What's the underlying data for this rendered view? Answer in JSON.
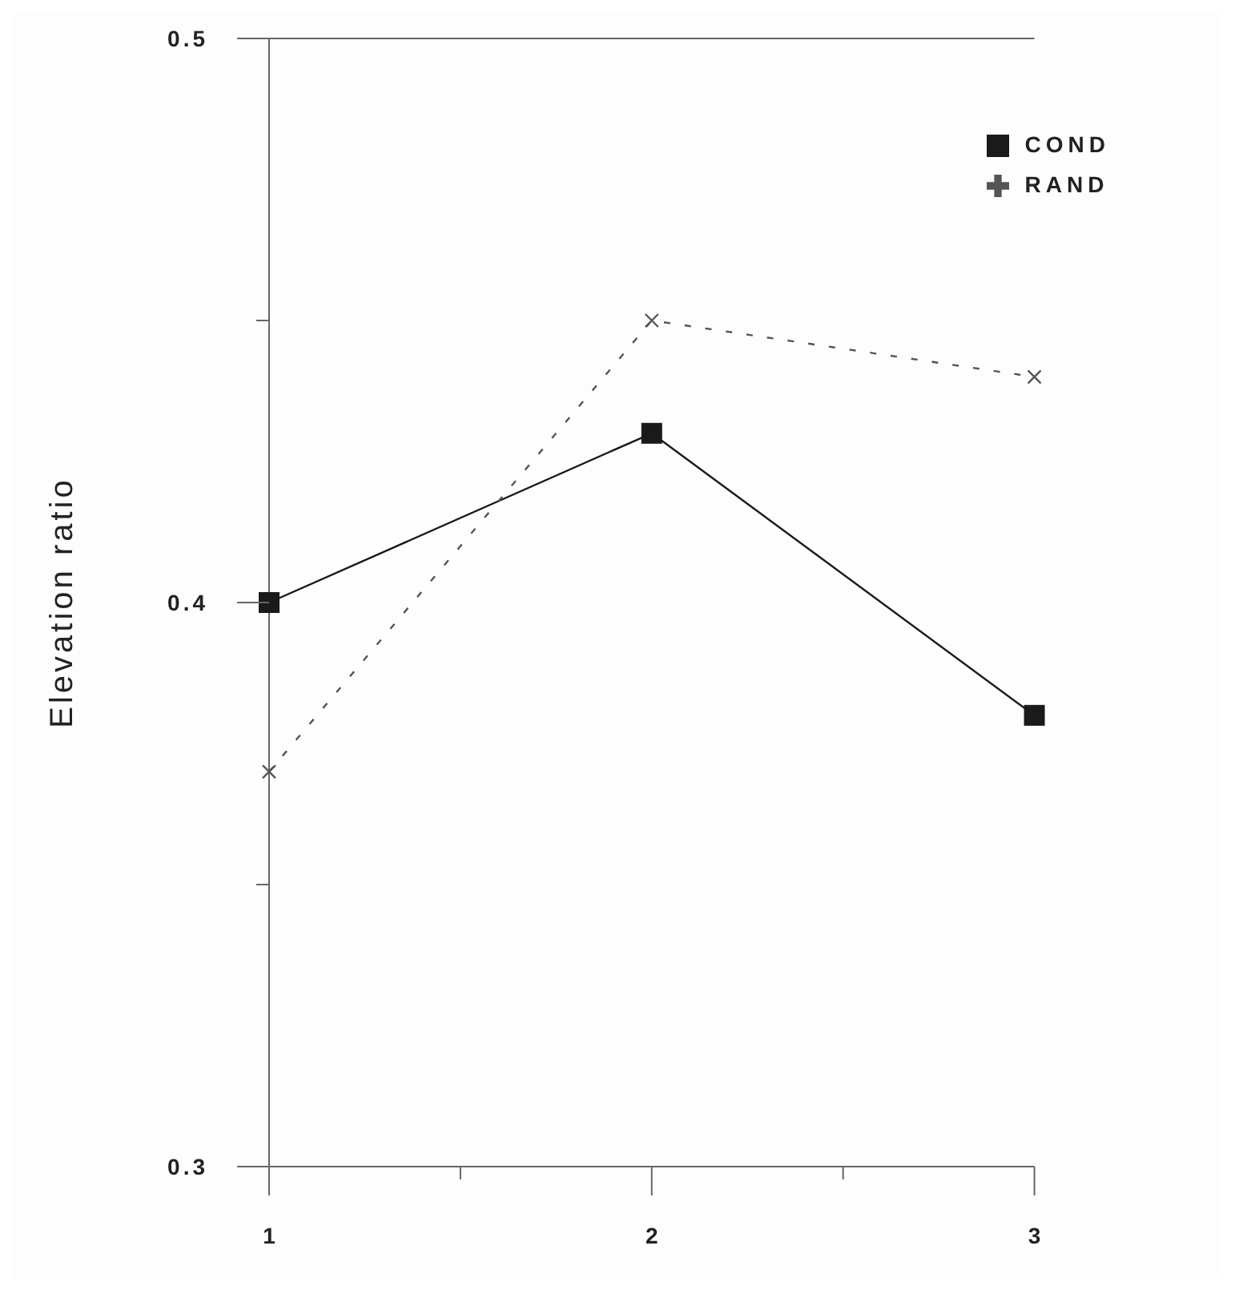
{
  "chart_data": {
    "type": "line",
    "ylabel": "Elevation ratio",
    "x": [
      1,
      2,
      3
    ],
    "xlim": [
      1,
      3
    ],
    "xticks": [
      1,
      {
        "value": 1.5,
        "label": null
      },
      2,
      {
        "value": 2.5,
        "label": null
      },
      3
    ],
    "ylim": [
      0.3,
      0.5
    ],
    "yticks": [
      0.3,
      {
        "value": 0.35,
        "label": null
      },
      0.4,
      {
        "value": 0.45,
        "label": null
      },
      0.5
    ],
    "legend": "top right",
    "series": [
      {
        "name": "COND",
        "color": "#1a1a1a",
        "values": [
          0.4,
          0.43,
          0.38
        ],
        "marker": "square",
        "line_style": "solid"
      },
      {
        "name": "RAND",
        "color": "#555555",
        "values": [
          0.37,
          0.45,
          0.44
        ],
        "marker": "cross",
        "line_style": "dashed"
      }
    ]
  }
}
